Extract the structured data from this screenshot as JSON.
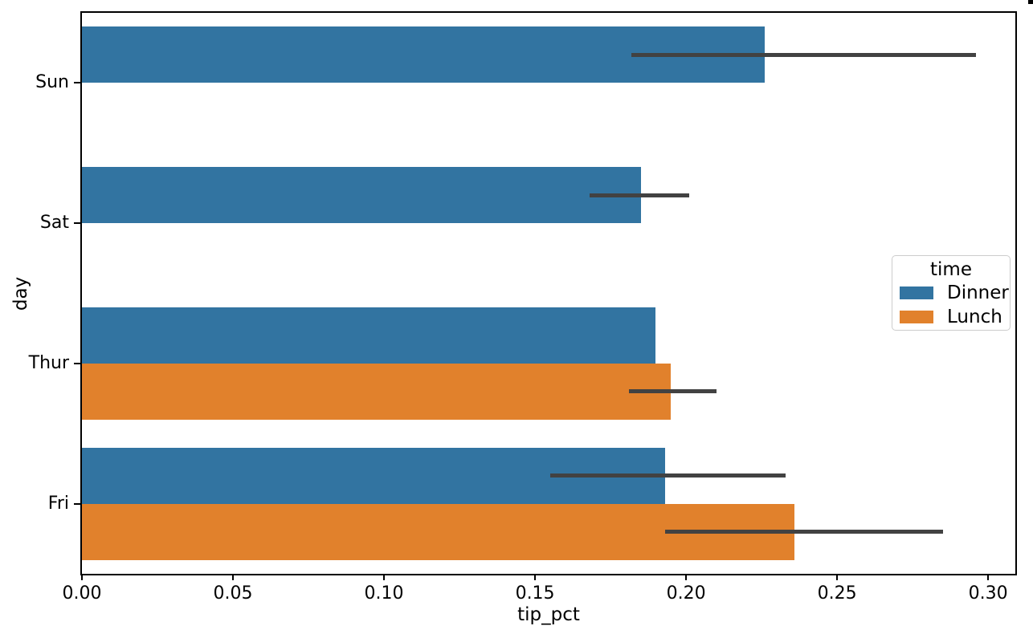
{
  "chart_data": {
    "type": "bar",
    "orientation": "horizontal",
    "title": "",
    "xlabel": "tip_pct",
    "ylabel": "day",
    "categories": [
      "Sun",
      "Sat",
      "Thur",
      "Fri"
    ],
    "xlim": [
      0,
      0.309
    ],
    "xticks": [
      0.0,
      0.05,
      0.1,
      0.15,
      0.2,
      0.25,
      0.3
    ],
    "xtick_labels": [
      "0.00",
      "0.05",
      "0.10",
      "0.15",
      "0.20",
      "0.25",
      "0.30"
    ],
    "grid": false,
    "background_color": "#ffffff",
    "spine_color": "#000000",
    "error_bar_color": "#424242",
    "legend": {
      "title": "time",
      "position": "center-right",
      "entries": [
        {
          "label": "Dinner",
          "color": "#3274a1"
        },
        {
          "label": "Lunch",
          "color": "#e1812c"
        }
      ]
    },
    "series": [
      {
        "name": "Dinner",
        "color": "#3274a1",
        "values": [
          0.226,
          0.185,
          0.19,
          0.193
        ],
        "ci_low": [
          0.182,
          0.168,
          null,
          0.155
        ],
        "ci_high": [
          0.296,
          0.201,
          null,
          0.233
        ]
      },
      {
        "name": "Lunch",
        "color": "#e1812c",
        "values": [
          null,
          null,
          0.195,
          0.236
        ],
        "ci_low": [
          null,
          null,
          0.181,
          0.193
        ],
        "ci_high": [
          null,
          null,
          0.21,
          0.285
        ]
      }
    ]
  }
}
